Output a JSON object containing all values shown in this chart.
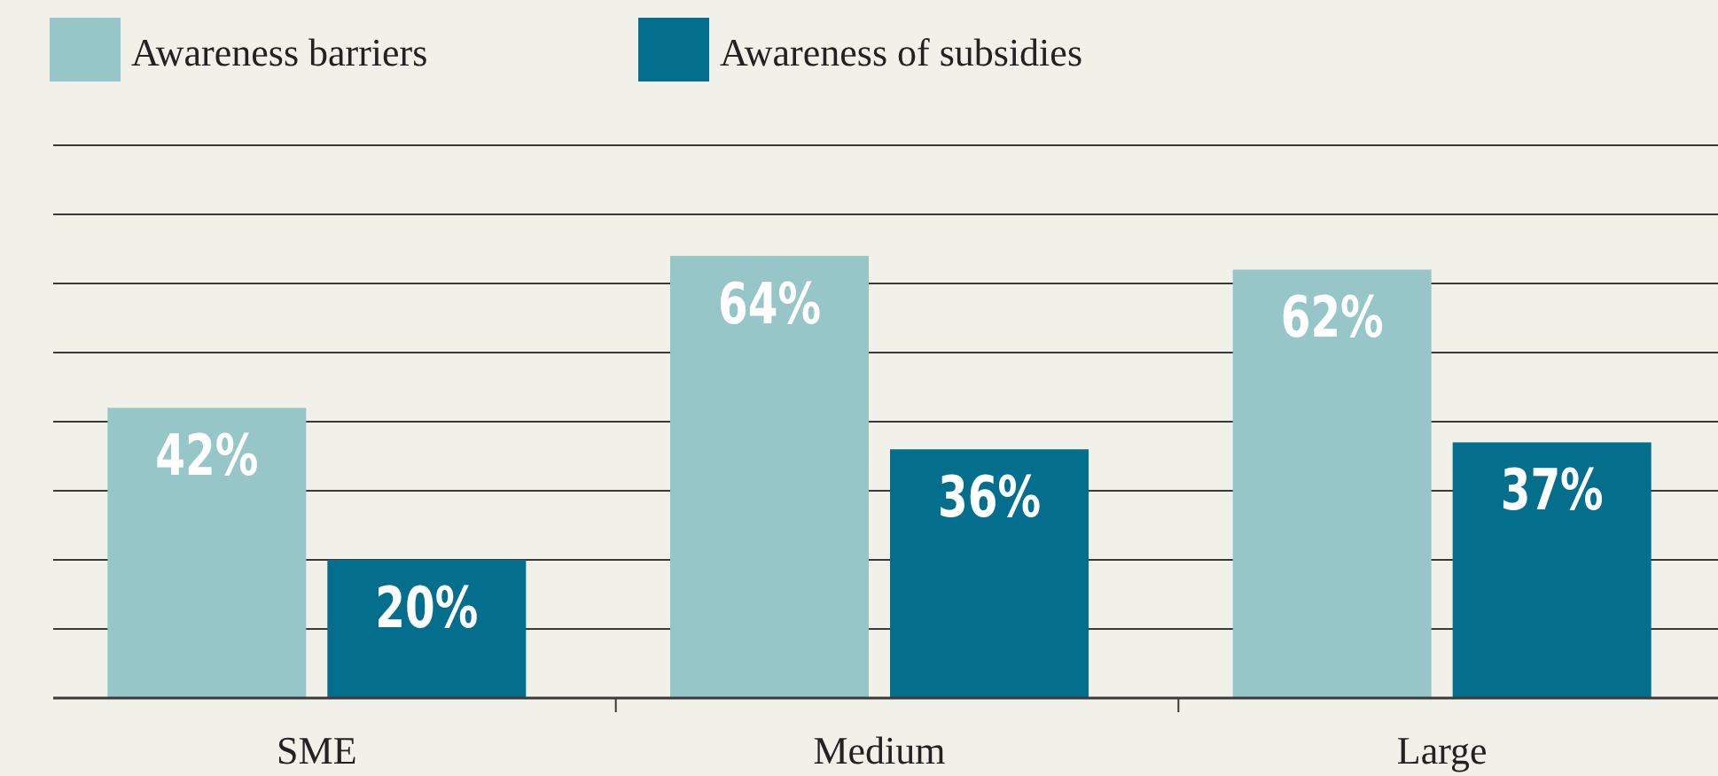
{
  "chart_data": {
    "type": "bar",
    "categories": [
      "SME",
      "Medium",
      "Large"
    ],
    "series": [
      {
        "name": "Awareness barriers",
        "color": "#96c6c8",
        "values": [
          42,
          64,
          62
        ],
        "value_labels": [
          "42%",
          "64%",
          "62%"
        ]
      },
      {
        "name": "Awareness of subsidies",
        "color": "#046f8c",
        "values": [
          20,
          36,
          37
        ],
        "value_labels": [
          "20%",
          "36%",
          "37%"
        ]
      }
    ],
    "ylim": [
      0,
      80
    ],
    "yticks": [
      {
        "value": 0,
        "label": null
      },
      {
        "value": 10,
        "label": null
      },
      {
        "value": 20,
        "label": null
      },
      {
        "value": 30,
        "label": null
      },
      {
        "value": 40,
        "label": null
      },
      {
        "value": 50,
        "label": null
      },
      {
        "value": 60,
        "label": null
      },
      {
        "value": 70,
        "label": null
      },
      {
        "value": 80,
        "label": null
      }
    ],
    "grid": "y",
    "legend": "top left",
    "tick_labels": "x"
  }
}
